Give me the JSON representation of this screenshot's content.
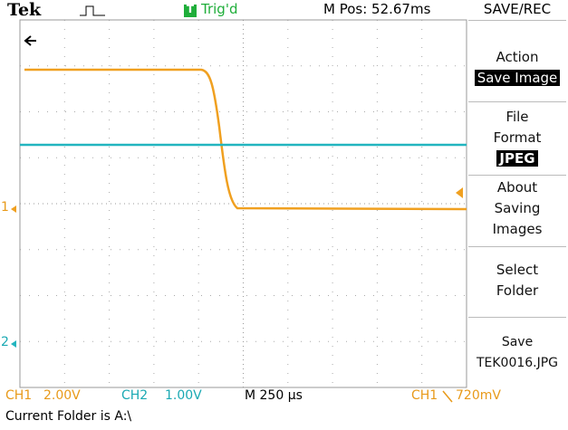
{
  "header": {
    "brand": "Tek",
    "trigger_badge": "T",
    "trigger_status": "Trig'd",
    "position": "M Pos: 52.67ms",
    "menu_title": "SAVE/REC"
  },
  "menu": [
    {
      "label": "Action",
      "value": "Save Image"
    },
    {
      "label": "File Format",
      "value": "JPEG"
    },
    {
      "label": "About Saving Images"
    },
    {
      "label": "Select Folder"
    },
    {
      "label": "Save",
      "value": "TEK0016.JPG"
    }
  ],
  "channels": {
    "ch1_marker": "1",
    "ch2_marker": "2"
  },
  "status": {
    "ch1": "CH1",
    "ch1_scale": "2.00V",
    "ch2": "CH2",
    "ch2_scale": "1.00V",
    "timebase": "M 250 µs",
    "trigger_source": "CH1",
    "trigger_level": "720mV"
  },
  "footer": "Current Folder is A:\\"
}
